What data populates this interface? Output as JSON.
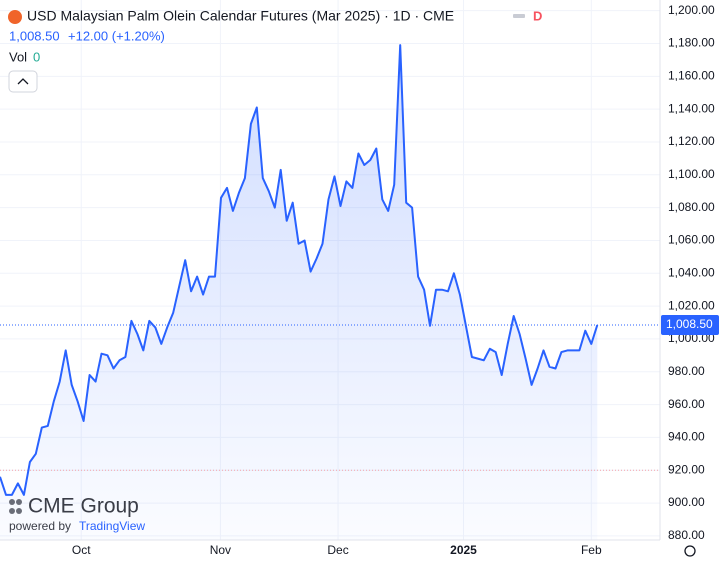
{
  "chart_data": {
    "type": "line",
    "title": "USD Malaysian Palm Olein Calendar Futures (Mar 2025) · 1D · CME",
    "timeframe_flag": "D",
    "price": "1,008.50",
    "change": "+12.00 (+1.20%)",
    "volume_label": "Vol",
    "volume": "0",
    "logo": "CME Group",
    "powered_by": "powered by",
    "powered_brand": "TradingView",
    "last_price_label": "1,008.50",
    "color": "#2962ff",
    "reference_line": 920,
    "values": [
      916,
      905,
      905,
      912,
      905,
      925,
      930,
      946,
      947,
      962,
      974,
      993,
      972,
      962,
      950,
      978,
      974,
      991,
      990,
      982,
      987,
      989,
      1011,
      1003,
      993,
      1011,
      1007,
      997,
      1007,
      1016,
      1032,
      1048,
      1029,
      1038,
      1027,
      1038,
      1038,
      1086,
      1092,
      1078,
      1089,
      1098,
      1131,
      1141,
      1098,
      1090,
      1080,
      1103,
      1072,
      1083,
      1058,
      1060,
      1041,
      1049,
      1058,
      1085,
      1099,
      1081,
      1096,
      1092,
      1113,
      1106,
      1109,
      1116,
      1085,
      1078,
      1094,
      1179,
      1083,
      1080,
      1038,
      1030,
      1008,
      1030,
      1030,
      1029,
      1040,
      1027,
      1008,
      989,
      988,
      987,
      994,
      992,
      978,
      997,
      1014,
      1003,
      988,
      972,
      982,
      993,
      983,
      982,
      992,
      993,
      993,
      993,
      1005,
      997,
      1008.5
    ],
    "xlim": [
      0,
      110.5
    ],
    "xticks": [
      {
        "value": 13.6,
        "label": "Oct"
      },
      {
        "value": 36.9,
        "label": "Nov"
      },
      {
        "value": 56.6,
        "label": "Dec"
      },
      {
        "value": 77.6,
        "label": "2025"
      },
      {
        "value": 99,
        "label": "Feb"
      }
    ],
    "ylim": [
      877.5,
      1206.5
    ],
    "yticks": [
      {
        "value": 880,
        "label": "880.00"
      },
      {
        "value": 900,
        "label": "900.00"
      },
      {
        "value": 920,
        "label": "920.00"
      },
      {
        "value": 940,
        "label": "940.00"
      },
      {
        "value": 960,
        "label": "960.00"
      },
      {
        "value": 980,
        "label": "980.00"
      },
      {
        "value": 1000,
        "label": "1,000.00"
      },
      {
        "value": 1020,
        "label": "1,020.00"
      },
      {
        "value": 1040,
        "label": "1,040.00"
      },
      {
        "value": 1060,
        "label": "1,060.00"
      },
      {
        "value": 1080,
        "label": "1,080.00"
      },
      {
        "value": 1100,
        "label": "1,100.00"
      },
      {
        "value": 1120,
        "label": "1,120.00"
      },
      {
        "value": 1140,
        "label": "1,140.00"
      },
      {
        "value": 1160,
        "label": "1,160.00"
      },
      {
        "value": 1180,
        "label": "1,180.00"
      },
      {
        "value": 1200,
        "label": "1,200.00"
      }
    ]
  }
}
